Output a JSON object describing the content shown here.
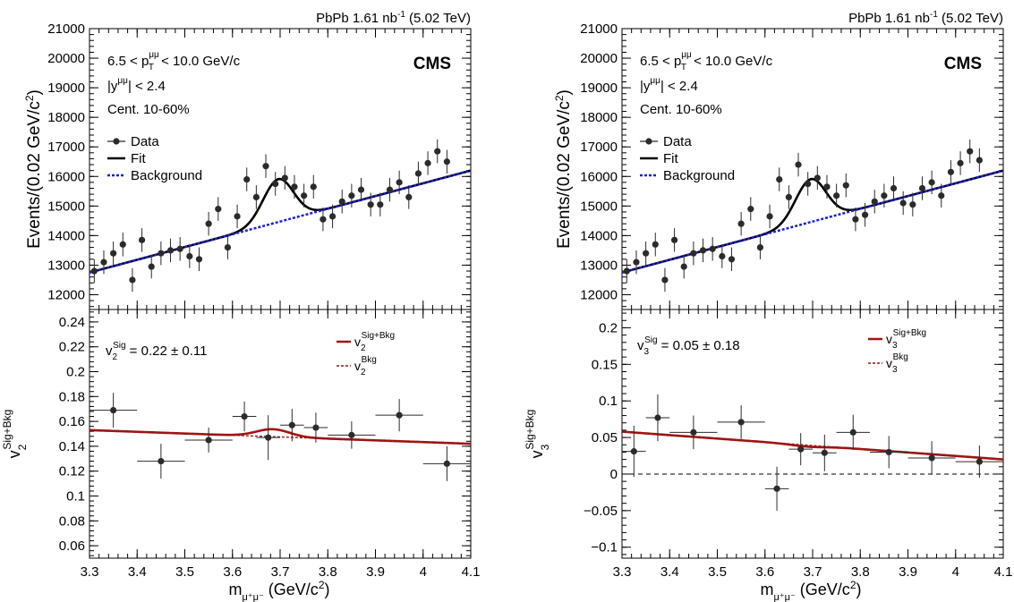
{
  "figure": {
    "left": {
      "lumi_text": "PbPb 1.61 nb",
      "lumi_sup": "-1",
      "lumi_energy": " (5.02 TeV)",
      "cms_label": "CMS",
      "kin_pt_left": "6.5 < p",
      "kin_pt_sup": "μμ",
      "kin_pt_sub": "T",
      "kin_pt_right": " < 10.0 GeV/c",
      "kin_y_left": "|y",
      "kin_y_sup": "μμ",
      "kin_y_right": "| < 2.4",
      "cent_text": "Cent. 10-60%",
      "legend_top": [
        "Data",
        "Fit",
        "Background"
      ],
      "ylabel_top": "Events/(0.02 GeV/c",
      "ylabel_top_sup": "2",
      "ylabel_top_close": ")",
      "ylabel_bottom_main": "v",
      "ylabel_bottom_sub": "2",
      "ylabel_bottom_sup": "Sig+Bkg",
      "vsig_main": "v",
      "vsig_sub": "2",
      "vsig_sup": "Sig",
      "vsig_value": " = 0.22 ± 0.11",
      "legend_bottom_sig_sub": "2",
      "legend_bottom_sig_sup": "Sig+Bkg",
      "legend_bottom_bkg_sub": "2",
      "legend_bottom_bkg_sup": "Bkg",
      "xlabel_main": "m",
      "xlabel_sub": "μ⁺μ⁻",
      "xlabel_unit": " (GeV/c",
      "xlabel_sup": "2",
      "xlabel_close": ")"
    },
    "right": {
      "lumi_text": "PbPb 1.61 nb",
      "lumi_sup": "-1",
      "lumi_energy": " (5.02 TeV)",
      "cms_label": "CMS",
      "kin_pt_left": "6.5 < p",
      "kin_pt_sup": "μμ",
      "kin_pt_sub": "T",
      "kin_pt_right": " < 10.0 GeV/c",
      "kin_y_left": "|y",
      "kin_y_sup": "μμ",
      "kin_y_right": "| < 2.4",
      "cent_text": "Cent. 10-60%",
      "legend_top": [
        "Data",
        "Fit",
        "Background"
      ],
      "ylabel_top": "Events/(0.02 GeV/c",
      "ylabel_top_sup": "2",
      "ylabel_top_close": ")",
      "ylabel_bottom_main": "v",
      "ylabel_bottom_sub": "3",
      "ylabel_bottom_sup": "Sig+Bkg",
      "vsig_main": "v",
      "vsig_sub": "3",
      "vsig_sup": "Sig",
      "vsig_value": " = 0.05 ± 0.18",
      "legend_bottom_sig_sub": "3",
      "legend_bottom_sig_sup": "Sig+Bkg",
      "legend_bottom_bkg_sub": "3",
      "legend_bottom_bkg_sup": "Bkg",
      "xlabel_main": "m",
      "xlabel_sub": "μ⁺μ⁻",
      "xlabel_unit": " (GeV/c",
      "xlabel_sup": "2",
      "xlabel_close": ")"
    }
  },
  "colors": {
    "data": "#2b2b2b",
    "fit": "#000000",
    "background": "#1f1fd6",
    "v_sig_bkg": "#aa1111",
    "v_bkg": "#8a1a1a",
    "zero_line": "#000000"
  },
  "chart_data": [
    {
      "type": "scatter",
      "panel": "left-top",
      "xlim": [
        3.3,
        4.1
      ],
      "ylim": [
        11500,
        21000
      ],
      "xticks": [
        3.3,
        3.4,
        3.5,
        3.6,
        3.7,
        3.8,
        3.9,
        4.0,
        4.1
      ],
      "xtick_labels": [
        "3.3",
        "3.4",
        "3.5",
        "3.6",
        "3.7",
        "3.8",
        "3.9",
        "4",
        "4.1"
      ],
      "yticks": [
        12000,
        13000,
        14000,
        15000,
        16000,
        17000,
        18000,
        19000,
        20000,
        21000
      ],
      "ytick_labels": [
        "12000",
        "13000",
        "14000",
        "15000",
        "16000",
        "17000",
        "18000",
        "19000",
        "20000",
        "21000"
      ],
      "series": [
        {
          "name": "Data",
          "kind": "points",
          "x": [
            3.31,
            3.33,
            3.35,
            3.37,
            3.39,
            3.41,
            3.43,
            3.45,
            3.47,
            3.49,
            3.51,
            3.53,
            3.55,
            3.57,
            3.59,
            3.61,
            3.63,
            3.65,
            3.67,
            3.69,
            3.71,
            3.73,
            3.75,
            3.77,
            3.79,
            3.81,
            3.83,
            3.85,
            3.87,
            3.89,
            3.91,
            3.93,
            3.95,
            3.97,
            3.99,
            4.01,
            4.03,
            4.05,
            4.07,
            4.09
          ],
          "y": [
            12800,
            13100,
            13400,
            13700,
            12500,
            13850,
            12950,
            13400,
            13500,
            13550,
            13300,
            13200,
            14400,
            14900,
            13600,
            14650,
            15900,
            15300,
            16350,
            15750,
            15950,
            15650,
            15350,
            15650,
            14550,
            14650,
            15150,
            15350,
            15550,
            15050,
            15050,
            15550,
            15800,
            15300,
            16100,
            16450,
            16850,
            16500,
            null,
            null
          ],
          "yerr": 400
        },
        {
          "name": "Fit",
          "kind": "curve",
          "background": [
            12750,
            16200
          ],
          "peak": {
            "center": 3.696,
            "sigma": 0.032,
            "amp": 1450
          }
        },
        {
          "name": "Background",
          "kind": "line",
          "y_at_xmin": 12750,
          "y_at_xmax": 16200
        }
      ]
    },
    {
      "type": "scatter",
      "panel": "left-bottom",
      "xlim": [
        3.3,
        4.1
      ],
      "ylim": [
        0.05,
        0.25
      ],
      "xticks": [
        3.3,
        3.4,
        3.5,
        3.6,
        3.7,
        3.8,
        3.9,
        4.0,
        4.1
      ],
      "xtick_labels": [
        "3.3",
        "3.4",
        "3.5",
        "3.6",
        "3.7",
        "3.8",
        "3.9",
        "4",
        "4.1"
      ],
      "yticks": [
        0.06,
        0.08,
        0.1,
        0.12,
        0.14,
        0.16,
        0.18,
        0.2,
        0.22,
        0.24
      ],
      "ytick_labels": [
        "0.06",
        "0.08",
        "0.1",
        "0.12",
        "0.14",
        "0.16",
        "0.18",
        "0.2",
        "0.22",
        "0.24"
      ],
      "series": [
        {
          "name": "Data",
          "kind": "points",
          "x": [
            3.35,
            3.45,
            3.55,
            3.625,
            3.675,
            3.725,
            3.775,
            3.85,
            3.95,
            4.05
          ],
          "xerr": [
            0.05,
            0.05,
            0.05,
            0.025,
            0.025,
            0.025,
            0.025,
            0.05,
            0.05,
            0.05
          ],
          "y": [
            0.169,
            0.128,
            0.145,
            0.164,
            0.147,
            0.157,
            0.155,
            0.149,
            0.165,
            0.126
          ],
          "yerr": [
            0.014,
            0.014,
            0.01,
            0.012,
            0.018,
            0.013,
            0.012,
            0.011,
            0.013,
            0.014
          ]
        },
        {
          "name": "v2 Sig+Bkg",
          "kind": "curve",
          "background": [
            0.153,
            0.142
          ],
          "peak": {
            "center": 3.685,
            "sigma": 0.035,
            "amp": 0.006
          }
        },
        {
          "name": "v2 Bkg",
          "kind": "line",
          "y_at_xmin": 0.153,
          "y_at_xmax": 0.142
        }
      ]
    },
    {
      "type": "scatter",
      "panel": "right-top",
      "xlim": [
        3.3,
        4.1
      ],
      "ylim": [
        11500,
        21000
      ],
      "xticks": [
        3.3,
        3.4,
        3.5,
        3.6,
        3.7,
        3.8,
        3.9,
        4.0,
        4.1
      ],
      "xtick_labels": [
        "3.3",
        "3.4",
        "3.5",
        "3.6",
        "3.7",
        "3.8",
        "3.9",
        "4",
        "4.1"
      ],
      "yticks": [
        12000,
        13000,
        14000,
        15000,
        16000,
        17000,
        18000,
        19000,
        20000,
        21000
      ],
      "ytick_labels": [
        "12000",
        "13000",
        "14000",
        "15000",
        "16000",
        "17000",
        "18000",
        "19000",
        "20000",
        "21000"
      ],
      "series": [
        {
          "name": "Data",
          "kind": "points",
          "x": [
            3.31,
            3.33,
            3.35,
            3.37,
            3.39,
            3.41,
            3.43,
            3.45,
            3.47,
            3.49,
            3.51,
            3.53,
            3.55,
            3.57,
            3.59,
            3.61,
            3.63,
            3.65,
            3.67,
            3.69,
            3.71,
            3.73,
            3.75,
            3.77,
            3.79,
            3.81,
            3.83,
            3.85,
            3.87,
            3.89,
            3.91,
            3.93,
            3.95,
            3.97,
            3.99,
            4.01,
            4.03,
            4.05,
            4.07,
            4.09
          ],
          "y": [
            12800,
            13100,
            13400,
            13700,
            12500,
            13850,
            12950,
            13400,
            13500,
            13550,
            13300,
            13200,
            14400,
            14900,
            13600,
            14650,
            15900,
            15300,
            16400,
            15750,
            15950,
            15650,
            15350,
            15700,
            14550,
            14700,
            15150,
            15350,
            15600,
            15100,
            15050,
            15600,
            15800,
            15350,
            16150,
            16450,
            16850,
            16550,
            null,
            null
          ],
          "yerr": 400
        },
        {
          "name": "Fit",
          "kind": "curve",
          "background": [
            12750,
            16200
          ],
          "peak": {
            "center": 3.696,
            "sigma": 0.032,
            "amp": 1450
          }
        },
        {
          "name": "Background",
          "kind": "line",
          "y_at_xmin": 12750,
          "y_at_xmax": 16200
        }
      ]
    },
    {
      "type": "scatter",
      "panel": "right-bottom",
      "xlim": [
        3.3,
        4.1
      ],
      "ylim": [
        -0.115,
        0.225
      ],
      "xticks": [
        3.3,
        3.4,
        3.5,
        3.6,
        3.7,
        3.8,
        3.9,
        4.0,
        4.1
      ],
      "xtick_labels": [
        "3.3",
        "3.4",
        "3.5",
        "3.6",
        "3.7",
        "3.8",
        "3.9",
        "4",
        "4.1"
      ],
      "yticks": [
        -0.1,
        -0.05,
        0,
        0.05,
        0.1,
        0.15,
        0.2
      ],
      "ytick_labels": [
        "−0.1",
        "−0.05",
        "0",
        "0.05",
        "0.1",
        "0.15",
        "0.2"
      ],
      "zero_line": true,
      "series": [
        {
          "name": "Data",
          "kind": "points",
          "x": [
            3.325,
            3.375,
            3.45,
            3.55,
            3.625,
            3.675,
            3.725,
            3.785,
            3.86,
            3.95,
            4.05
          ],
          "xerr": [
            0.025,
            0.025,
            0.05,
            0.05,
            0.025,
            0.025,
            0.025,
            0.035,
            0.04,
            0.05,
            0.05
          ],
          "y": [
            0.031,
            0.077,
            0.057,
            0.071,
            -0.02,
            0.034,
            0.029,
            0.057,
            0.03,
            0.022,
            0.017
          ],
          "yerr": [
            0.035,
            0.032,
            0.023,
            0.023,
            0.03,
            0.022,
            0.025,
            0.024,
            0.022,
            0.023,
            0.022
          ]
        },
        {
          "name": "v3 Sig+Bkg",
          "kind": "curve",
          "background": [
            0.058,
            0.02
          ],
          "peak": {
            "center": 3.69,
            "sigma": 0.035,
            "amp": -0.002
          }
        },
        {
          "name": "v3 Bkg",
          "kind": "line",
          "y_at_xmin": 0.058,
          "y_at_xmax": 0.02
        }
      ]
    }
  ]
}
